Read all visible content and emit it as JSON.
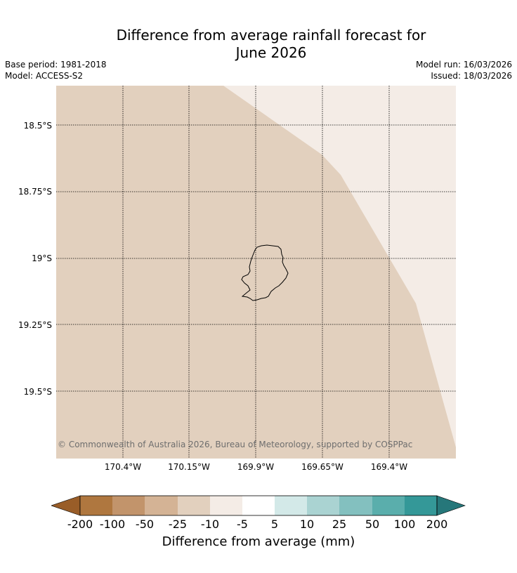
{
  "header": {
    "title_line1": "Difference from average rainfall forecast for",
    "title_line2": "June 2026",
    "base_period": "Base period: 1981-2018",
    "model": "Model: ACCESS-S2",
    "model_run": "Model run: 16/03/2026",
    "issued": "Issued: 18/03/2026"
  },
  "map": {
    "latitude_labels": [
      "18.5°S",
      "18.75°S",
      "19°S",
      "19.25°S",
      "19.5°S"
    ],
    "longitude_labels": [
      "170.4°W",
      "170.15°W",
      "169.9°W",
      "169.65°W",
      "169.4°W"
    ],
    "copyright": "© Commonwealth of Australia 2026, Bureau of Meteorology, supported by COSPPac",
    "regions": [
      {
        "category": "-25 to -10",
        "color": "#e2d0be"
      },
      {
        "category": "-10 to -5",
        "color": "#f4ece6"
      }
    ],
    "coastline_color": "#000000",
    "gridline_style": "dotted"
  },
  "colorbar": {
    "ticks": [
      "-200",
      "-100",
      "-50",
      "-25",
      "-10",
      "-5",
      "5",
      "10",
      "25",
      "50",
      "100",
      "200"
    ],
    "colors": [
      "#995d28",
      "#af773f",
      "#c2946b",
      "#d4b395",
      "#e2d0be",
      "#f4ece6",
      "#ffffff",
      "#d3e9e8",
      "#aad3d2",
      "#83c0bf",
      "#5aaeac",
      "#349898",
      "#26777a"
    ],
    "label": "Difference from average (mm)"
  }
}
